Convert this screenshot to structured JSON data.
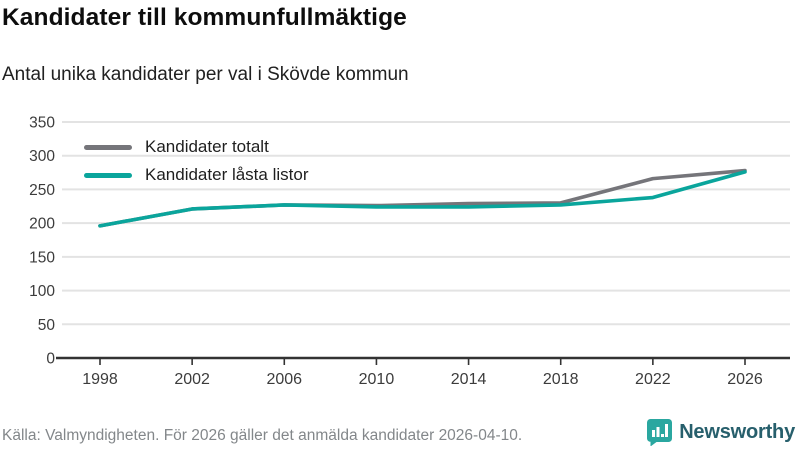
{
  "header": {
    "title": "Kandidater till kommunfullmäktige",
    "subtitle": "Antal unika kandidater per val i Skövde kommun"
  },
  "chart_data": {
    "type": "line",
    "x": [
      1998,
      2002,
      2006,
      2010,
      2014,
      2018,
      2022,
      2026
    ],
    "series": [
      {
        "name": "Kandidater totalt",
        "color": "#75757a",
        "values": [
          196,
          221,
          227,
          226,
          229,
          230,
          266,
          278
        ]
      },
      {
        "name": "Kandidater låsta listor",
        "color": "#0aa59c",
        "values": [
          196,
          221,
          227,
          224,
          224,
          227,
          238,
          276
        ]
      }
    ],
    "ylim": [
      0,
      350
    ],
    "yticks": [
      0,
      50,
      100,
      150,
      200,
      250,
      300,
      350
    ],
    "xticks": [
      1998,
      2002,
      2006,
      2010,
      2014,
      2018,
      2022,
      2026
    ],
    "grid": true,
    "legend_position": "top-left",
    "xlabel": "",
    "ylabel": ""
  },
  "colors": {
    "grid": "#e3e3e3",
    "axis": "#333333",
    "tick_label": "#3c3c3c",
    "brand_teal": "#2aa7a0",
    "brand_text": "#275f6c"
  },
  "footer": {
    "source": "Källa: Valmyndigheten. För 2026 gäller det anmälda kandidater 2026-04-10.",
    "brand": "Newsworthy"
  }
}
